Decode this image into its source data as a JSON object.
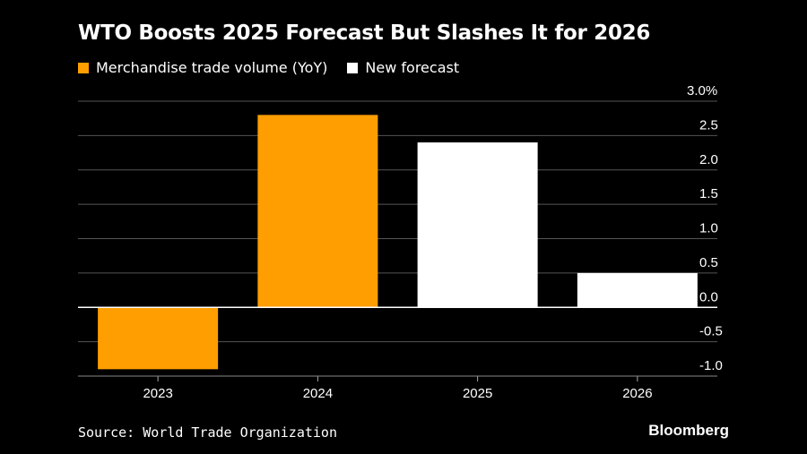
{
  "chart_data": {
    "type": "bar",
    "title": "WTO Boosts 2025 Forecast But Slashes It for 2026",
    "categories": [
      "2023",
      "2024",
      "2025",
      "2026"
    ],
    "values": [
      -0.9,
      2.8,
      2.4,
      0.5
    ],
    "series_of_bar": [
      "Merchandise trade volume (YoY)",
      "Merchandise trade volume (YoY)",
      "New forecast",
      "New forecast"
    ],
    "legend": [
      {
        "name": "Merchandise trade volume (YoY)",
        "color": "#ff9e00"
      },
      {
        "name": "New forecast",
        "color": "#ffffff"
      }
    ],
    "yticks": [
      "3.0%",
      "2.5",
      "2.0",
      "1.5",
      "1.0",
      "0.5",
      "0.0",
      "-0.5",
      "-1.0"
    ],
    "ytick_values": [
      3,
      2.5,
      2,
      1.5,
      1,
      0.5,
      0,
      -0.5,
      -1
    ],
    "ylim": [
      -1,
      3
    ],
    "xlabel": "",
    "ylabel": "",
    "grid": true,
    "legend_placement": "top-left"
  },
  "source": "Source: World Trade Organization",
  "brand": "Bloomberg"
}
